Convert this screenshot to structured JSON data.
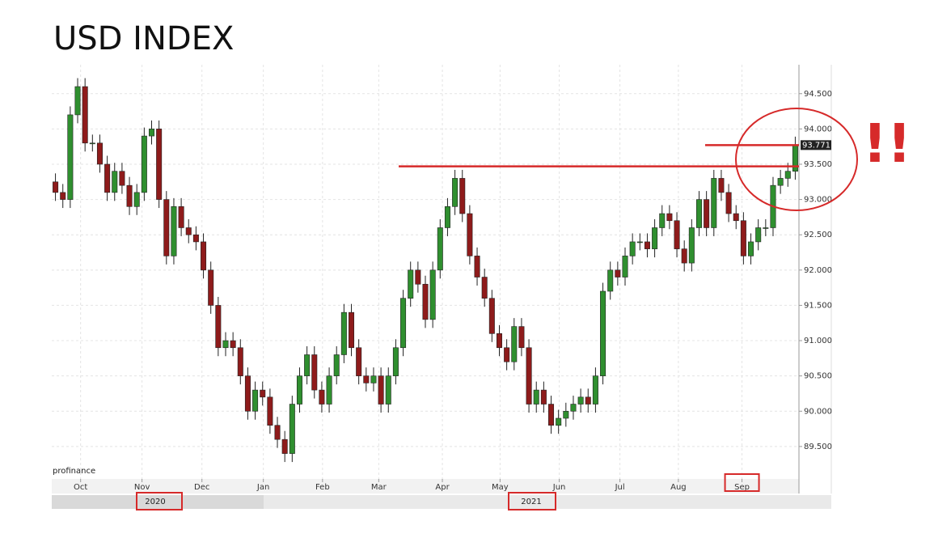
{
  "chart_data": {
    "type": "candlestick",
    "title": "USD INDEX",
    "source": "profinance",
    "up_color": "#2f8f2f",
    "down_color": "#8e1b1b",
    "annotation_color": "#d62a2a",
    "last_price": 93.771,
    "reference_lines": [
      93.47,
      93.77
    ],
    "annotation_text": "!!",
    "period_labels": [
      "2020",
      "2021"
    ],
    "highlighted_periods": [
      "2020",
      "2021"
    ],
    "xlim": [
      -0.5,
      100.5
    ],
    "xticks": [
      {
        "value": 3.4,
        "label": "Oct"
      },
      {
        "value": 11.7,
        "label": "Nov"
      },
      {
        "value": 19.8,
        "label": "Dec"
      },
      {
        "value": 28.1,
        "label": "Jan"
      },
      {
        "value": 36.1,
        "label": "Feb"
      },
      {
        "value": 43.7,
        "label": "Mar"
      },
      {
        "value": 52.3,
        "label": "Apr"
      },
      {
        "value": 60.1,
        "label": "May"
      },
      {
        "value": 68.1,
        "label": "Jun"
      },
      {
        "value": 76.3,
        "label": "Jul"
      },
      {
        "value": 84.2,
        "label": "Aug"
      },
      {
        "value": 92.8,
        "label": "Sep"
      }
    ],
    "ylim": [
      89.04,
      94.91
    ],
    "yticks": [
      {
        "value": 89.5,
        "label": "89.500"
      },
      {
        "value": 90,
        "label": "90.000"
      },
      {
        "value": 90.5,
        "label": "90.500"
      },
      {
        "value": 91,
        "label": "91.000"
      },
      {
        "value": 91.5,
        "label": "91.500"
      },
      {
        "value": 92,
        "label": "92.000"
      },
      {
        "value": 92.5,
        "label": "92.500"
      },
      {
        "value": 93,
        "label": "93.000"
      },
      {
        "value": 93.5,
        "label": "93.500"
      },
      {
        "value": 94,
        "label": "94.000"
      },
      {
        "value": 94.5,
        "label": "94.500"
      }
    ],
    "grid": true,
    "open": [
      93.25,
      93.1,
      93.0,
      94.2,
      94.6,
      93.8,
      93.8,
      93.5,
      93.1,
      93.4,
      93.2,
      92.9,
      93.1,
      93.9,
      94.0,
      93.0,
      92.2,
      92.9,
      92.6,
      92.5,
      92.4,
      92.0,
      91.5,
      90.9,
      91.0,
      90.9,
      90.5,
      90.0,
      90.3,
      90.2,
      89.8,
      89.6,
      89.4,
      90.1,
      90.5,
      90.8,
      90.3,
      90.1,
      90.5,
      90.8,
      91.4,
      90.9,
      90.5,
      90.4,
      90.5,
      90.1,
      90.5,
      90.9,
      91.6,
      92.0,
      91.8,
      91.3,
      92.0,
      92.6,
      92.9,
      93.3,
      92.8,
      92.2,
      91.9,
      91.6,
      91.1,
      90.9,
      90.7,
      91.2,
      90.9,
      90.1,
      90.3,
      90.1,
      89.8,
      89.9,
      90.0,
      90.1,
      90.2,
      90.1,
      90.5,
      91.7,
      92.0,
      91.9,
      92.2,
      92.4,
      92.4,
      92.3,
      92.6,
      92.8,
      92.7,
      92.3,
      92.1,
      92.6,
      93.0,
      92.6,
      93.3,
      93.1,
      92.8,
      92.7,
      92.2,
      92.4,
      92.6,
      92.6,
      93.2,
      93.3,
      93.4
    ],
    "high": [
      93.37,
      93.22,
      94.32,
      94.72,
      94.72,
      93.92,
      93.92,
      93.62,
      93.52,
      93.52,
      93.32,
      93.22,
      94.02,
      94.12,
      94.12,
      93.12,
      93.02,
      93.02,
      92.72,
      92.62,
      92.52,
      92.12,
      91.62,
      91.12,
      91.12,
      91.02,
      90.62,
      90.42,
      90.42,
      90.32,
      89.92,
      89.72,
      90.22,
      90.62,
      90.92,
      90.92,
      90.42,
      90.62,
      90.92,
      91.52,
      91.52,
      91.02,
      90.62,
      90.62,
      90.62,
      90.62,
      91.02,
      91.72,
      92.12,
      92.12,
      91.92,
      92.12,
      92.72,
      93.02,
      93.42,
      93.42,
      92.92,
      92.32,
      92.02,
      91.72,
      91.22,
      91.02,
      91.32,
      91.32,
      91.02,
      90.42,
      90.42,
      90.22,
      90.02,
      90.12,
      90.22,
      90.32,
      90.32,
      90.62,
      91.82,
      92.12,
      92.12,
      92.32,
      92.52,
      92.52,
      92.52,
      92.72,
      92.92,
      92.92,
      92.82,
      92.42,
      92.72,
      93.12,
      93.12,
      93.42,
      93.42,
      93.22,
      92.92,
      92.82,
      92.52,
      92.72,
      92.72,
      93.32,
      93.42,
      93.52,
      93.891
    ],
    "low": [
      92.98,
      92.88,
      92.88,
      94.08,
      93.68,
      93.68,
      93.38,
      92.98,
      92.98,
      93.08,
      92.78,
      92.78,
      92.98,
      93.78,
      92.88,
      92.08,
      92.08,
      92.48,
      92.38,
      92.28,
      91.88,
      91.38,
      90.78,
      90.78,
      90.78,
      90.38,
      89.88,
      89.88,
      90.08,
      89.68,
      89.48,
      89.28,
      89.28,
      89.98,
      90.38,
      90.18,
      89.98,
      89.98,
      90.38,
      90.68,
      90.78,
      90.38,
      90.28,
      90.28,
      89.98,
      89.98,
      90.38,
      90.78,
      91.48,
      91.68,
      91.18,
      91.18,
      91.88,
      92.48,
      92.78,
      92.68,
      92.08,
      91.78,
      91.48,
      90.98,
      90.78,
      90.58,
      90.58,
      90.78,
      89.98,
      89.98,
      89.98,
      89.68,
      89.68,
      89.78,
      89.88,
      89.98,
      89.98,
      89.98,
      90.38,
      91.58,
      91.78,
      91.78,
      92.08,
      92.28,
      92.18,
      92.18,
      92.48,
      92.58,
      92.18,
      91.98,
      91.98,
      92.48,
      92.48,
      92.48,
      92.98,
      92.68,
      92.58,
      92.08,
      92.08,
      92.28,
      92.48,
      92.48,
      93.08,
      93.18,
      93.28
    ],
    "close": [
      93.1,
      93.0,
      94.2,
      94.6,
      93.8,
      93.8,
      93.5,
      93.1,
      93.4,
      93.2,
      92.9,
      93.1,
      93.9,
      94.0,
      93.0,
      92.2,
      92.9,
      92.6,
      92.5,
      92.4,
      92.0,
      91.5,
      90.9,
      91.0,
      90.9,
      90.5,
      90.0,
      90.3,
      90.2,
      89.8,
      89.6,
      89.4,
      90.1,
      90.5,
      90.8,
      90.3,
      90.1,
      90.5,
      90.8,
      91.4,
      90.9,
      90.5,
      90.4,
      90.5,
      90.1,
      90.5,
      90.9,
      91.6,
      92.0,
      91.8,
      91.3,
      92.0,
      92.6,
      92.9,
      93.3,
      92.8,
      92.2,
      91.9,
      91.6,
      91.1,
      90.9,
      90.7,
      91.2,
      90.9,
      90.1,
      90.3,
      90.1,
      89.8,
      89.9,
      90.0,
      90.1,
      90.2,
      90.1,
      90.5,
      91.7,
      92.0,
      91.9,
      92.2,
      92.4,
      92.4,
      92.3,
      92.6,
      92.8,
      92.7,
      92.3,
      92.1,
      92.6,
      93.0,
      92.6,
      93.3,
      93.1,
      92.8,
      92.7,
      92.2,
      92.4,
      92.6,
      92.6,
      93.2,
      93.3,
      93.4,
      93.771
    ]
  }
}
